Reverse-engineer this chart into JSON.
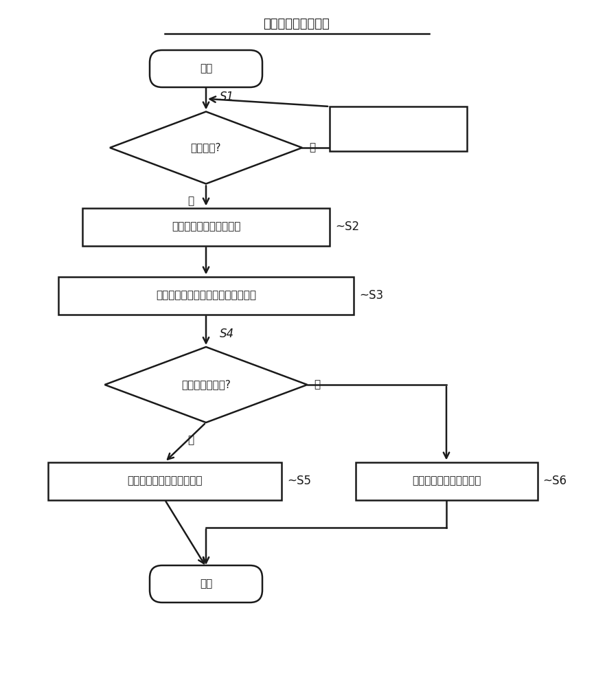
{
  "title": "校正参数的分析阶段",
  "bg_color": "#ffffff",
  "line_color": "#1a1a1a",
  "text_color": "#1a1a1a",
  "font_size_title": 13,
  "font_size_node": 11,
  "font_size_label": 11,
  "start_text": "开始",
  "end_text": "结束",
  "diamond1_text": "分析开始?",
  "diamond2_text": "统计值超过阀值?",
  "rect2_text": "读出时间序列的校正参数",
  "rect3_text": "根据时间序列的校正参数计算统计值",
  "rect5_text": "发出超过阀值的意旨的警告",
  "rect6_text": "报知没有超过阀值的意旨",
  "label_s1": "S1",
  "label_s2": "~S2",
  "label_s3": "~S3",
  "label_s4": "S4",
  "label_s5": "~S5",
  "label_s6": "~S6",
  "label_yes": "是",
  "label_no": "否"
}
